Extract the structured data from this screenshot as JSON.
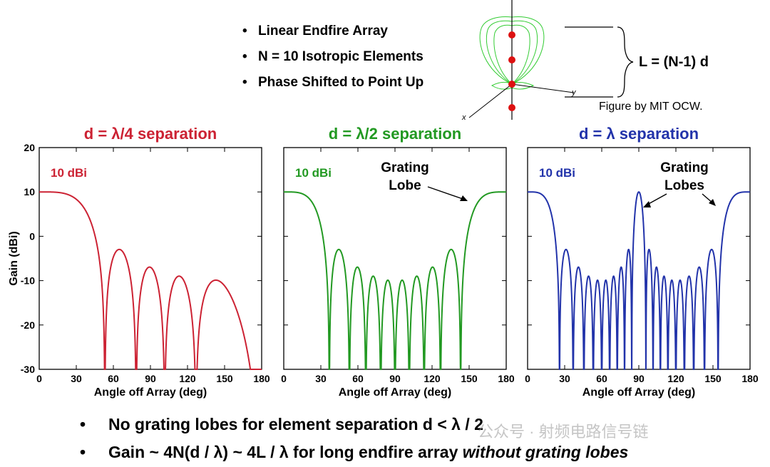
{
  "bullets": [
    "Linear Endfire Array",
    "N = 10 Isotropic Elements",
    "Phase Shifted to Point Up"
  ],
  "figure": {
    "length_formula": "L = (N-1) d",
    "credit": "Figure by MIT OCW.",
    "axis_labels": {
      "x": "x",
      "y": "y"
    },
    "pattern_color": "#33cc33",
    "element_color": "#dd1111"
  },
  "bottom_notes": [
    "No grating lobes for element separation d < λ / 2",
    "Gain ~ 4N(d / λ) ~ 4L / λ for long endfire array "
  ],
  "bottom_notes_emphasis": [
    "",
    "without grating lobes"
  ],
  "watermark": "公众号 · 射频电路信号链",
  "chart_data": [
    {
      "type": "line",
      "title": "d = λ/4 separation",
      "xlabel": "Angle off Array (deg)",
      "ylabel": "Gain (dBi)",
      "xlim": [
        0,
        180
      ],
      "ylim": [
        -30,
        20
      ],
      "xticks": [
        "0",
        "30",
        "60",
        "90",
        "120",
        "150",
        "180"
      ],
      "yticks": [
        "20",
        "10",
        "0",
        "-10",
        "-20",
        "-30"
      ],
      "grid": false,
      "color": "#cc2233",
      "annotations": [
        {
          "text": "10 dBi"
        }
      ],
      "series": [
        {
          "spacing_wavelengths": 0.25,
          "elements": 10,
          "peak_gain_dbi": 10,
          "x": [
            0,
            10,
            20,
            30,
            40,
            51.3,
            63.6,
            75.5,
            89.9,
            101.5,
            114.1,
            124.5,
            140.2,
            168
          ],
          "y": [
            10,
            9.7,
            8.5,
            6,
            1,
            -30,
            -3.2,
            -30,
            -7,
            -30,
            -9.5,
            -30,
            -10,
            -30
          ]
        }
      ]
    },
    {
      "type": "line",
      "title": "d = λ/2 separation",
      "xlabel": "Angle off Array (deg)",
      "ylabel": "",
      "xlim": [
        0,
        180
      ],
      "ylim": [
        -30,
        20
      ],
      "xticks": [
        "0",
        "30",
        "60",
        "90",
        "120",
        "150",
        "180"
      ],
      "yticks": [],
      "grid": false,
      "color": "#229922",
      "annotations": [
        {
          "text": "10 dBi"
        },
        {
          "text": "Grating\nLobe"
        }
      ],
      "series": [
        {
          "spacing_wavelengths": 0.5,
          "elements": 10,
          "peak_gain_dbi": 10,
          "x": [
            0,
            36.9,
            42,
            53.1,
            60,
            66.4,
            72,
            78.5,
            83,
            90,
            97,
            101.5,
            108,
            113.6,
            120,
            126.9,
            138,
            143.1,
            180
          ],
          "y": [
            10,
            -30,
            -2.3,
            -30,
            -5.8,
            -30,
            -7.5,
            -30,
            -8.3,
            -30,
            -8.3,
            -30,
            -7.5,
            -30,
            -5.8,
            -30,
            -2.3,
            -30,
            10
          ]
        }
      ]
    },
    {
      "type": "line",
      "title": "d = λ separation",
      "xlabel": "Angle off Array (deg)",
      "ylabel": "",
      "xlim": [
        0,
        180
      ],
      "ylim": [
        -30,
        20
      ],
      "xticks": [
        "0",
        "30",
        "60",
        "90",
        "120",
        "150",
        "180"
      ],
      "yticks": [],
      "grid": false,
      "color": "#2233aa",
      "annotations": [
        {
          "text": "10 dBi"
        },
        {
          "text": "Grating\nLobes"
        }
      ],
      "series": [
        {
          "spacing_wavelengths": 1.0,
          "elements": 10,
          "peak_gain_dbi": 10,
          "x": [
            0,
            25.8,
            29,
            36.9,
            90,
            143.1,
            151,
            154.2,
            180
          ],
          "y": [
            10,
            -30,
            -2,
            -30,
            10,
            -30,
            -2,
            -30,
            10
          ]
        }
      ]
    }
  ]
}
